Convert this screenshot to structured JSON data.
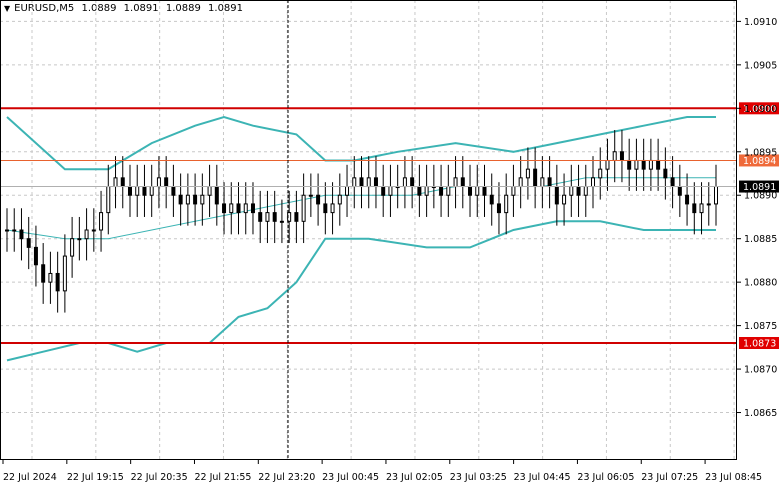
{
  "header": {
    "symbol": "EURUSD,M5",
    "open": "1.0889",
    "high": "1.0891",
    "low": "1.0889",
    "close": "1.0891"
  },
  "colors": {
    "background": "#ffffff",
    "grid": "#c8c8c8",
    "candle": "#000000",
    "band": "#3cb4b4",
    "middle_band": "#3cb4b4",
    "level_line": "#d00000",
    "level_line_light": "#e8622e",
    "label_bg_red": "#e00000",
    "label_bg_orange": "#ef6a3a",
    "label_bg_current": "#000000",
    "crosshair": "#000000"
  },
  "chart_data": {
    "type": "candlestick",
    "title": "",
    "ylim": [
      1.086,
      1.0912
    ],
    "yticks": [
      "1.0910",
      "1.0905",
      "1.0900",
      "1.0895",
      "1.0890",
      "1.0885",
      "1.0880",
      "1.0875",
      "1.0870",
      "1.0865"
    ],
    "xticks": [
      "22 Jul 2024",
      "22 Jul 19:15",
      "22 Jul 20:35",
      "22 Jul 21:55",
      "22 Jul 23:20",
      "23 Jul 00:45",
      "23 Jul 02:05",
      "23 Jul 03:25",
      "23 Jul 04:45",
      "23 Jul 06:05",
      "23 Jul 07:25",
      "23 Jul 08:45"
    ],
    "grid": true,
    "horizontal_levels": [
      {
        "price": 1.09,
        "label": "1.0900",
        "style": "red"
      },
      {
        "price": 1.0894,
        "label": "1.0894",
        "style": "orange"
      },
      {
        "price": 1.0873,
        "label": "1.0873",
        "style": "red"
      }
    ],
    "current_price": {
      "price": 1.0891,
      "label": "1.0891"
    },
    "crosshair_x_index": 16,
    "close_series": [
      1.0886,
      1.0886,
      1.0885,
      1.0884,
      1.0882,
      1.088,
      1.0881,
      1.0879,
      1.0883,
      1.0885,
      1.0885,
      1.0886,
      1.0886,
      1.0888,
      1.0891,
      1.0892,
      1.0891,
      1.089,
      1.0891,
      1.089,
      1.0891,
      1.0892,
      1.0891,
      1.089,
      1.0889,
      1.089,
      1.0889,
      1.089,
      1.0891,
      1.0889,
      1.0888,
      1.0889,
      1.0888,
      1.0889,
      1.0888,
      1.0887,
      1.0888,
      1.0887,
      1.0887,
      1.0888,
      1.0887,
      1.089,
      1.089,
      1.0889,
      1.0888,
      1.0889,
      1.089,
      1.0891,
      1.0892,
      1.0891,
      1.0892,
      1.0891,
      1.089,
      1.0891,
      1.0891,
      1.0892,
      1.0891,
      1.089,
      1.0891,
      1.0891,
      1.089,
      1.0891,
      1.0892,
      1.0891,
      1.089,
      1.0891,
      1.089,
      1.0889,
      1.0888,
      1.089,
      1.0891,
      1.0892,
      1.0893,
      1.0891,
      1.0892,
      1.0891,
      1.0889,
      1.089,
      1.0891,
      1.089,
      1.0891,
      1.0892,
      1.0893,
      1.0894,
      1.0895,
      1.0894,
      1.0893,
      1.0894,
      1.0893,
      1.0894,
      1.0893,
      1.0892,
      1.0891,
      1.089,
      1.0889,
      1.0888,
      1.0889,
      1.0889,
      1.0891
    ],
    "bands": {
      "upper": [
        [
          0,
          1.0899
        ],
        [
          8,
          1.0893
        ],
        [
          14,
          1.0893
        ],
        [
          20,
          1.0896
        ],
        [
          26,
          1.0898
        ],
        [
          30,
          1.0899
        ],
        [
          34,
          1.0898
        ],
        [
          40,
          1.0897
        ],
        [
          44,
          1.0894
        ],
        [
          48,
          1.0894
        ],
        [
          54,
          1.0895
        ],
        [
          62,
          1.0896
        ],
        [
          70,
          1.0895
        ],
        [
          76,
          1.0896
        ],
        [
          82,
          1.0897
        ],
        [
          88,
          1.0898
        ],
        [
          94,
          1.0899
        ],
        [
          98,
          1.0899
        ]
      ],
      "middle": [
        [
          0,
          1.0886
        ],
        [
          8,
          1.0885
        ],
        [
          14,
          1.0885
        ],
        [
          20,
          1.0886
        ],
        [
          26,
          1.0887
        ],
        [
          32,
          1.0888
        ],
        [
          38,
          1.0889
        ],
        [
          44,
          1.089
        ],
        [
          50,
          1.089
        ],
        [
          56,
          1.089
        ],
        [
          62,
          1.0891
        ],
        [
          68,
          1.0891
        ],
        [
          74,
          1.0891
        ],
        [
          80,
          1.0892
        ],
        [
          86,
          1.0892
        ],
        [
          92,
          1.0892
        ],
        [
          98,
          1.0892
        ]
      ],
      "lower": [
        [
          0,
          1.0871
        ],
        [
          5,
          1.0872
        ],
        [
          10,
          1.0873
        ],
        [
          14,
          1.0873
        ],
        [
          18,
          1.0872
        ],
        [
          22,
          1.0873
        ],
        [
          28,
          1.0873
        ],
        [
          32,
          1.0876
        ],
        [
          36,
          1.0877
        ],
        [
          40,
          1.088
        ],
        [
          44,
          1.0885
        ],
        [
          50,
          1.0885
        ],
        [
          58,
          1.0884
        ],
        [
          64,
          1.0884
        ],
        [
          70,
          1.0886
        ],
        [
          76,
          1.0887
        ],
        [
          82,
          1.0887
        ],
        [
          88,
          1.0886
        ],
        [
          94,
          1.0886
        ],
        [
          98,
          1.0886
        ]
      ]
    }
  }
}
